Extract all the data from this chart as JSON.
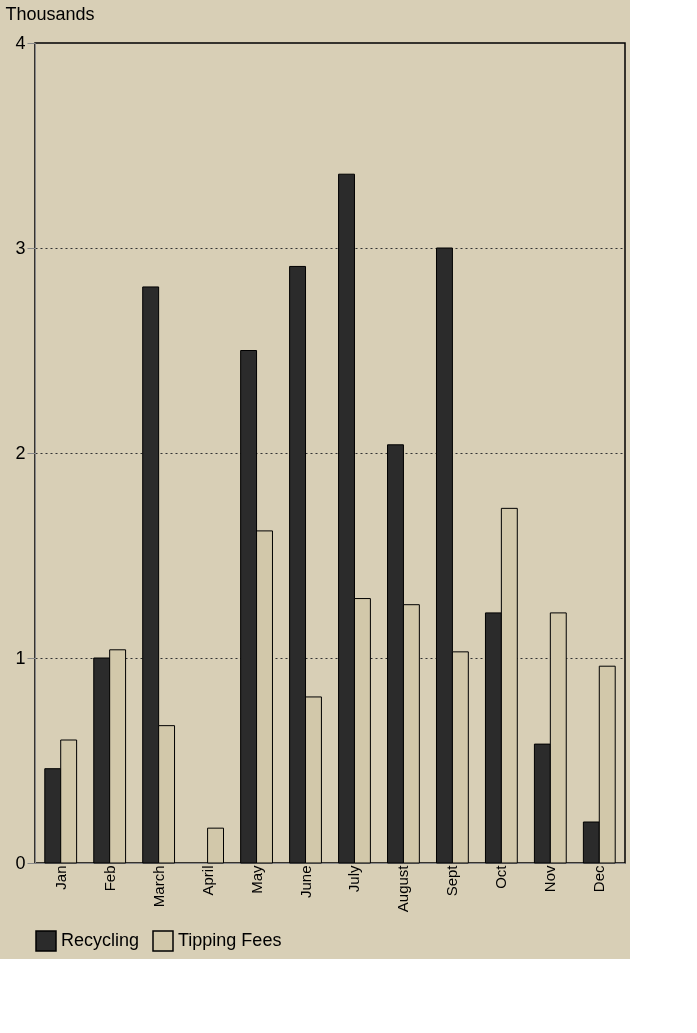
{
  "chart_data": {
    "type": "bar",
    "ylabel": "Thousands",
    "categories": [
      "Jan",
      "Feb",
      "March",
      "April",
      "May",
      "June",
      "July",
      "August",
      "Sept",
      "Oct",
      "Nov",
      "Dec"
    ],
    "series": [
      {
        "name": "Recycling",
        "color": "#2b2b2b",
        "values": [
          0.46,
          1.0,
          2.81,
          null,
          2.5,
          2.91,
          3.36,
          2.04,
          3.0,
          1.22,
          0.58,
          0.2
        ]
      },
      {
        "name": "Tipping Fees",
        "color": "#d2c8aa",
        "values": [
          0.6,
          1.04,
          0.67,
          0.17,
          1.62,
          0.81,
          1.29,
          1.26,
          1.03,
          1.73,
          1.22,
          0.96
        ]
      }
    ],
    "ylim": [
      0,
      4
    ],
    "yticks": [
      0,
      1,
      2,
      3,
      4
    ],
    "grid": "y",
    "legend": "bottom"
  }
}
